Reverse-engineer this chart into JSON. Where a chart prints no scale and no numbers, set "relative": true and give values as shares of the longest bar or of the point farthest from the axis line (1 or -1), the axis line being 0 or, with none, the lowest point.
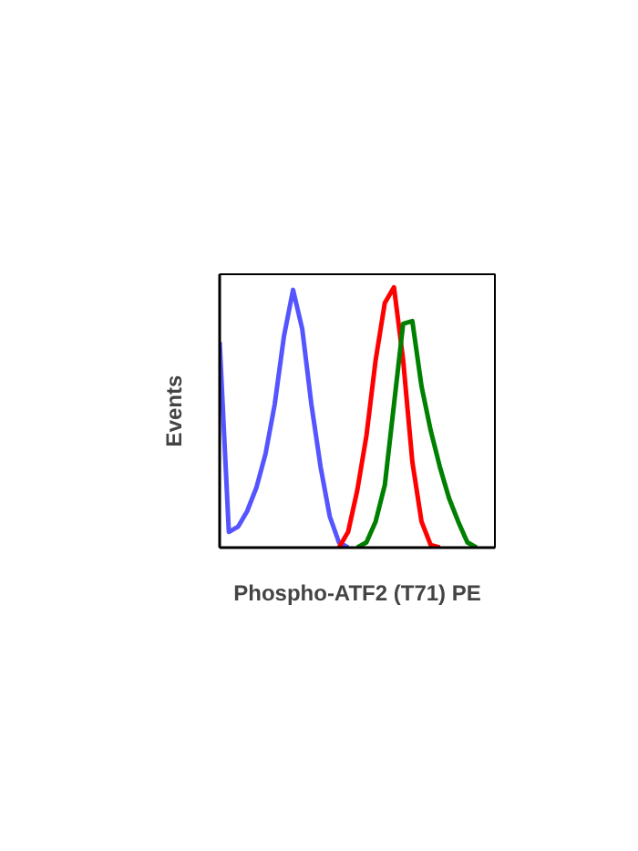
{
  "chart_data": {
    "type": "line",
    "relative": true,
    "xlabel": "Phospho-ATF2 (T71) PE",
    "ylabel": "Events",
    "grid": false,
    "categories": [
      null,
      null,
      null,
      null,
      null,
      null,
      null,
      null,
      null,
      null,
      null,
      null,
      null,
      null,
      null,
      null,
      null,
      null,
      null,
      null,
      null,
      null,
      null,
      null,
      null,
      null,
      null,
      null,
      null,
      null,
      null
    ],
    "series": [
      {
        "color": "#5555ff",
        "values": [
          0.79,
          0.06,
          0.08,
          0.14,
          0.23,
          0.36,
          0.55,
          0.81,
          0.99,
          0.84,
          0.55,
          0.31,
          0.12,
          0.02,
          0,
          null,
          null,
          null,
          null,
          null,
          null,
          null,
          null,
          null,
          null,
          null,
          null,
          null,
          null,
          null,
          null
        ]
      },
      {
        "color": "#ff0000",
        "values": [
          null,
          null,
          null,
          null,
          null,
          null,
          null,
          null,
          null,
          null,
          null,
          null,
          null,
          0,
          0.06,
          0.22,
          0.43,
          0.72,
          0.94,
          1.0,
          0.72,
          0.33,
          0.1,
          0.01,
          0,
          null,
          null,
          null,
          null,
          null,
          null
        ]
      },
      {
        "color": "#008000",
        "values": [
          null,
          null,
          null,
          null,
          null,
          null,
          null,
          null,
          null,
          null,
          null,
          null,
          null,
          null,
          null,
          0,
          0.02,
          0.1,
          0.24,
          0.55,
          0.86,
          0.87,
          0.62,
          0.45,
          0.31,
          0.19,
          0.1,
          0.02,
          0,
          null,
          null
        ]
      }
    ]
  }
}
